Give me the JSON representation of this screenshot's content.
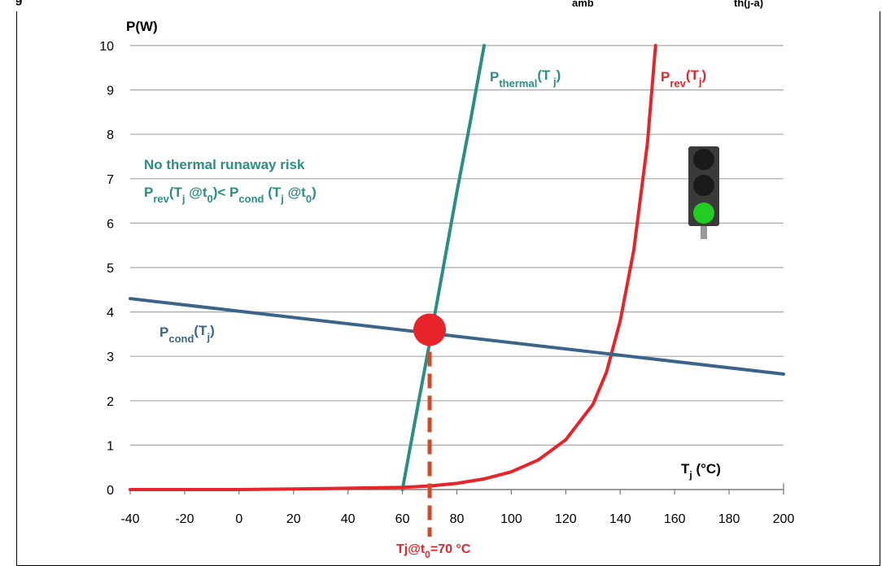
{
  "caption": {
    "fragment_1": "g",
    "fragment_2": "amb",
    "fragment_3": "th(j-a)"
  },
  "chart_data": {
    "type": "line",
    "ylabel": "P(W)",
    "xlabel": {
      "main": "T",
      "sub": "j",
      "rest": " (°C)"
    },
    "xlim": [
      -40,
      200
    ],
    "ylim": [
      0,
      10
    ],
    "xticks": [
      "-40",
      "-20",
      "0",
      "20",
      "40",
      "60",
      "80",
      "100",
      "120",
      "140",
      "160",
      "180",
      "200"
    ],
    "yticks": [
      "0",
      "1",
      "2",
      "3",
      "4",
      "5",
      "6",
      "7",
      "8",
      "9",
      "10"
    ],
    "grid": "horizontal",
    "series": [
      {
        "name": "P_thermal(T_j)",
        "color": "#2a8f82",
        "x": [
          60,
          63,
          66,
          70,
          75,
          80,
          85,
          90
        ],
        "y": [
          0,
          1.0,
          2.0,
          3.3,
          5.0,
          6.7,
          8.3,
          10.0
        ]
      },
      {
        "name": "P_rev(T_j)",
        "color": "#e8232a",
        "x": [
          -40,
          0,
          30,
          60,
          70,
          80,
          90,
          100,
          110,
          120,
          130,
          135,
          140,
          145,
          150,
          153
        ],
        "y": [
          0,
          0,
          0.02,
          0.05,
          0.08,
          0.14,
          0.24,
          0.4,
          0.67,
          1.12,
          1.92,
          2.65,
          3.8,
          5.4,
          7.8,
          10.0
        ]
      },
      {
        "name": "P_cond(T_j)",
        "color": "#3a6489",
        "x": [
          -40,
          200
        ],
        "y": [
          4.3,
          2.6
        ]
      }
    ],
    "labels": {
      "thermal": {
        "main": "P",
        "sub": "thermal",
        "paren": "(T",
        "paren_sub": " j",
        "close": ")"
      },
      "rev": {
        "main": "P",
        "sub": "rev",
        "paren": "(T",
        "paren_sub": "j",
        "close": ")"
      },
      "cond": {
        "main": "P",
        "sub": "cond",
        "paren": "(T",
        "paren_sub": "j",
        "close": ")"
      },
      "risk_line1": "No thermal runaway risk",
      "risk_line2": {
        "p1": "P",
        "p1_sub": "rev",
        "t1": "(T",
        "t1_sub": "j",
        "at1": " @t",
        "at1_sub": "0",
        "mid": ")< P",
        "p2_sub": "cond",
        "t2": " (T",
        "t2_sub": "j",
        "at2": " @t",
        "at2_sub": "0",
        "end": ")"
      },
      "tj_marker": {
        "pre": "Tj@t",
        "sub": "0",
        "post": "=70 °C"
      }
    },
    "operating_point": {
      "x": 70,
      "y": 3.6,
      "color": "#e8232a"
    },
    "traffic_light": {
      "state": "green",
      "green": "#22cc22",
      "off": "#1a1a1a"
    }
  }
}
